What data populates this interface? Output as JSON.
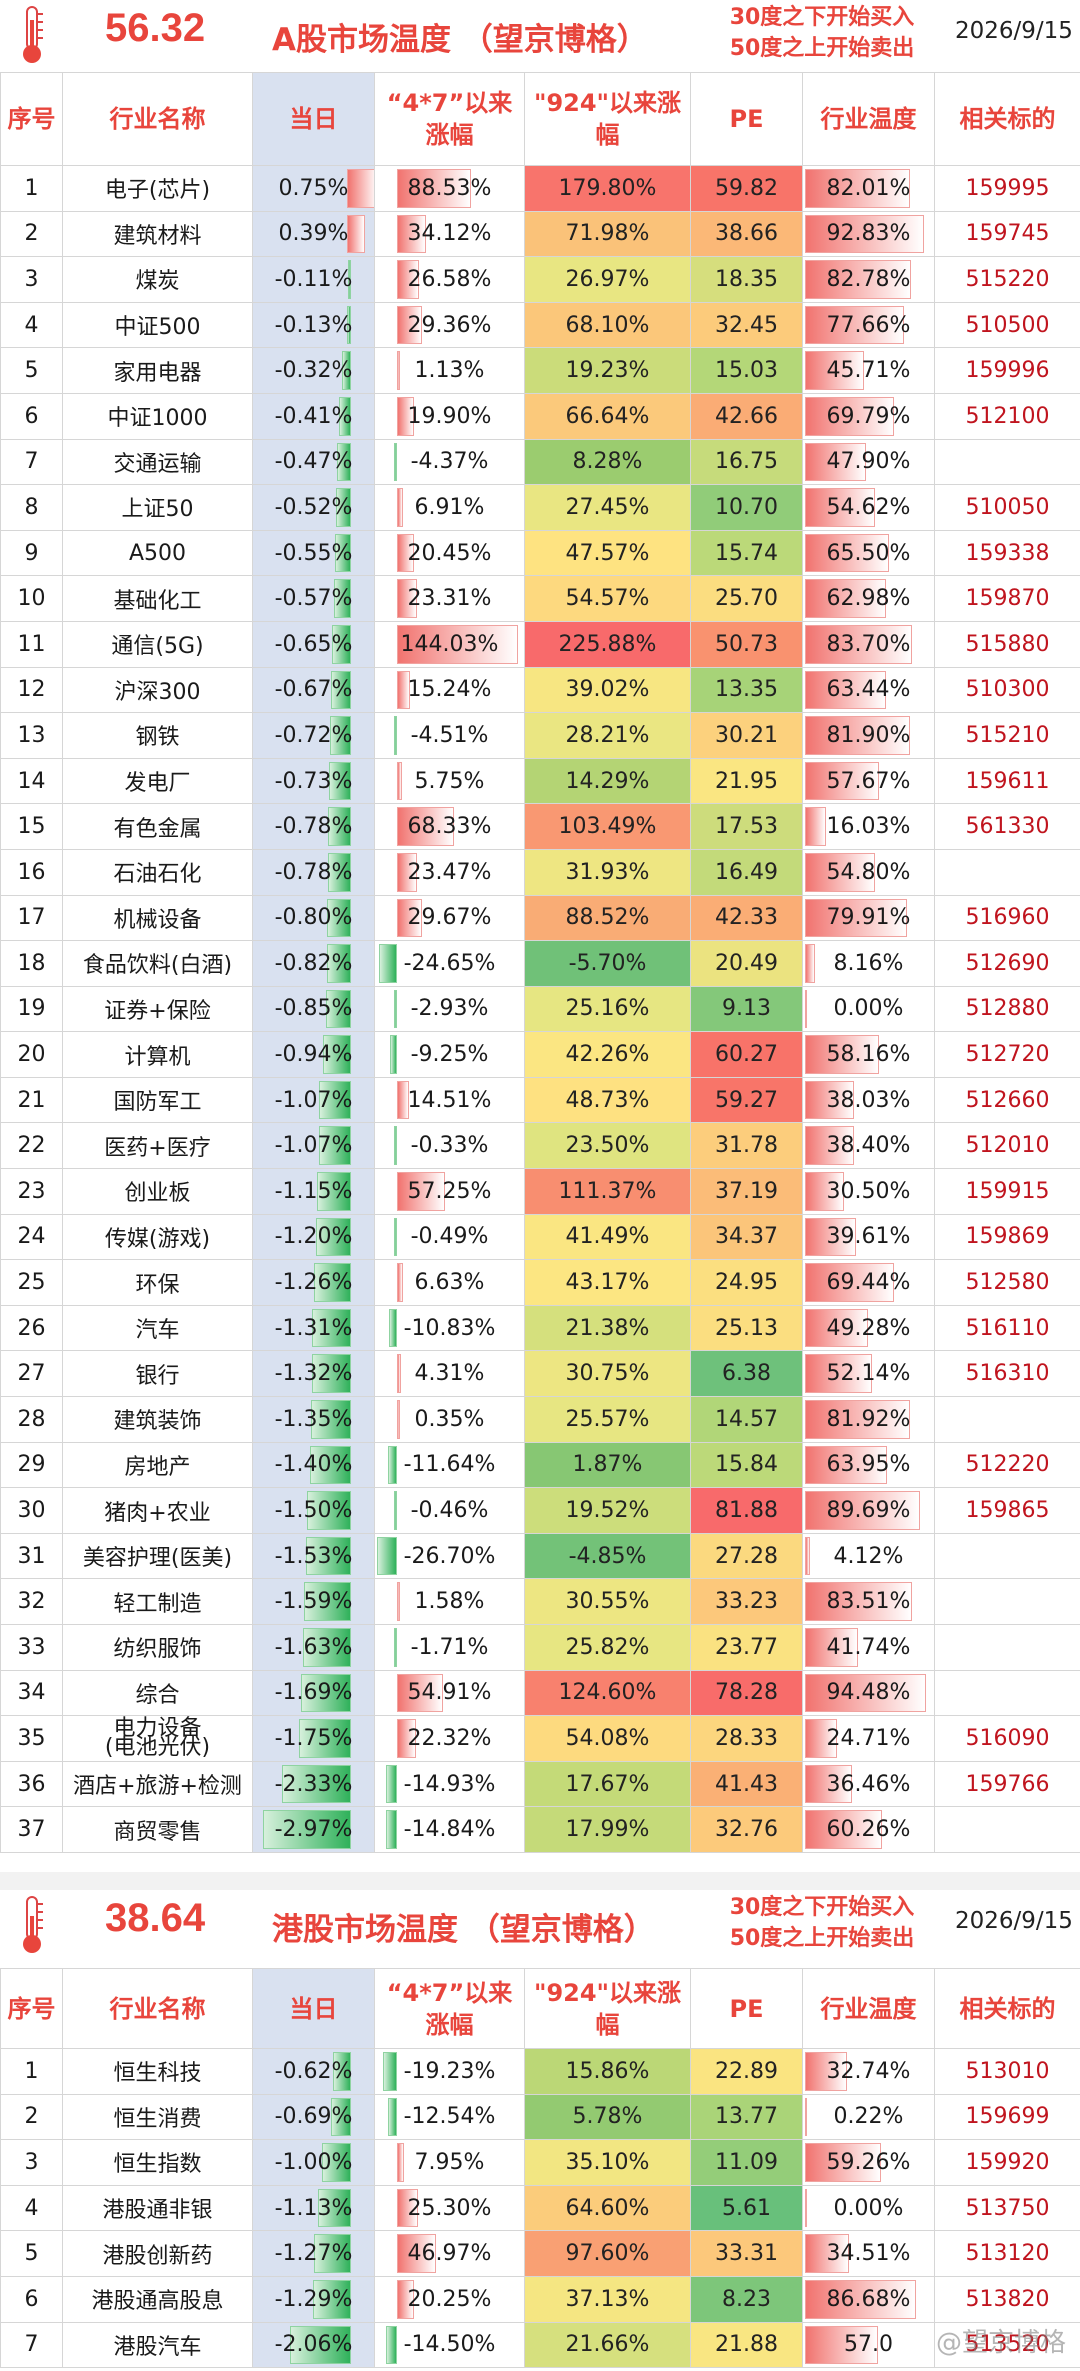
{
  "a_share": {
    "temperature": "56.32",
    "title": "A股市场温度 （望京博格）",
    "rule_line1": "30度之下开始买入",
    "rule_line2": "50度之上开始卖出",
    "date": "2026/9/15",
    "headers": {
      "idx": "序号",
      "name": "行业名称",
      "day": "当日",
      "since47": "“4*7”以来涨幅",
      "since924": "\"924\"以来涨幅",
      "pe": "PE",
      "temp": "行业温度",
      "code": "相关标的"
    },
    "rows": [
      {
        "idx": "1",
        "name": "电子(芯片)",
        "day": "0.75%",
        "d": 0.75,
        "s47": "88.53%",
        "v47": 88.53,
        "s924": "179.80%",
        "v924": 179.8,
        "pe": "59.82",
        "pev": 59.82,
        "temp": "82.01%",
        "t": 82.01,
        "code": "159995"
      },
      {
        "idx": "2",
        "name": "建筑材料",
        "day": "0.39%",
        "d": 0.39,
        "s47": "34.12%",
        "v47": 34.12,
        "s924": "71.98%",
        "v924": 71.98,
        "pe": "38.66",
        "pev": 38.66,
        "temp": "92.83%",
        "t": 92.83,
        "code": "159745"
      },
      {
        "idx": "3",
        "name": "煤炭",
        "day": "-0.11%",
        "d": -0.11,
        "s47": "26.58%",
        "v47": 26.58,
        "s924": "26.97%",
        "v924": 26.97,
        "pe": "18.35",
        "pev": 18.35,
        "temp": "82.78%",
        "t": 82.78,
        "code": "515220"
      },
      {
        "idx": "4",
        "name": "中证500",
        "day": "-0.13%",
        "d": -0.13,
        "s47": "29.36%",
        "v47": 29.36,
        "s924": "68.10%",
        "v924": 68.1,
        "pe": "32.45",
        "pev": 32.45,
        "temp": "77.66%",
        "t": 77.66,
        "code": "510500"
      },
      {
        "idx": "5",
        "name": "家用电器",
        "day": "-0.32%",
        "d": -0.32,
        "s47": "1.13%",
        "v47": 1.13,
        "s924": "19.23%",
        "v924": 19.23,
        "pe": "15.03",
        "pev": 15.03,
        "temp": "45.71%",
        "t": 45.71,
        "code": "159996"
      },
      {
        "idx": "6",
        "name": "中证1000",
        "day": "-0.41%",
        "d": -0.41,
        "s47": "19.90%",
        "v47": 19.9,
        "s924": "66.64%",
        "v924": 66.64,
        "pe": "42.66",
        "pev": 42.66,
        "temp": "69.79%",
        "t": 69.79,
        "code": "512100"
      },
      {
        "idx": "7",
        "name": "交通运输",
        "day": "-0.47%",
        "d": -0.47,
        "s47": "-4.37%",
        "v47": -4.37,
        "s924": "8.28%",
        "v924": 8.28,
        "pe": "16.75",
        "pev": 16.75,
        "temp": "47.90%",
        "t": 47.9,
        "code": ""
      },
      {
        "idx": "8",
        "name": "上证50",
        "day": "-0.52%",
        "d": -0.52,
        "s47": "6.91%",
        "v47": 6.91,
        "s924": "27.45%",
        "v924": 27.45,
        "pe": "10.70",
        "pev": 10.7,
        "temp": "54.62%",
        "t": 54.62,
        "code": "510050"
      },
      {
        "idx": "9",
        "name": "A500",
        "day": "-0.55%",
        "d": -0.55,
        "s47": "20.45%",
        "v47": 20.45,
        "s924": "47.57%",
        "v924": 47.57,
        "pe": "15.74",
        "pev": 15.74,
        "temp": "65.50%",
        "t": 65.5,
        "code": "159338"
      },
      {
        "idx": "10",
        "name": "基础化工",
        "day": "-0.57%",
        "d": -0.57,
        "s47": "23.31%",
        "v47": 23.31,
        "s924": "54.57%",
        "v924": 54.57,
        "pe": "25.70",
        "pev": 25.7,
        "temp": "62.98%",
        "t": 62.98,
        "code": "159870"
      },
      {
        "idx": "11",
        "name": "通信(5G)",
        "day": "-0.65%",
        "d": -0.65,
        "s47": "144.03%",
        "v47": 144.03,
        "s924": "225.88%",
        "v924": 225.88,
        "pe": "50.73",
        "pev": 50.73,
        "temp": "83.70%",
        "t": 83.7,
        "code": "515880"
      },
      {
        "idx": "12",
        "name": "沪深300",
        "day": "-0.67%",
        "d": -0.67,
        "s47": "15.24%",
        "v47": 15.24,
        "s924": "39.02%",
        "v924": 39.02,
        "pe": "13.35",
        "pev": 13.35,
        "temp": "63.44%",
        "t": 63.44,
        "code": "510300"
      },
      {
        "idx": "13",
        "name": "钢铁",
        "day": "-0.72%",
        "d": -0.72,
        "s47": "-4.51%",
        "v47": -4.51,
        "s924": "28.21%",
        "v924": 28.21,
        "pe": "30.21",
        "pev": 30.21,
        "temp": "81.90%",
        "t": 81.9,
        "code": "515210"
      },
      {
        "idx": "14",
        "name": "发电厂",
        "day": "-0.73%",
        "d": -0.73,
        "s47": "5.75%",
        "v47": 5.75,
        "s924": "14.29%",
        "v924": 14.29,
        "pe": "21.95",
        "pev": 21.95,
        "temp": "57.67%",
        "t": 57.67,
        "code": "159611"
      },
      {
        "idx": "15",
        "name": "有色金属",
        "day": "-0.78%",
        "d": -0.78,
        "s47": "68.33%",
        "v47": 68.33,
        "s924": "103.49%",
        "v924": 103.49,
        "pe": "17.53",
        "pev": 17.53,
        "temp": "16.03%",
        "t": 16.03,
        "code": "561330"
      },
      {
        "idx": "16",
        "name": "石油石化",
        "day": "-0.78%",
        "d": -0.78,
        "s47": "23.47%",
        "v47": 23.47,
        "s924": "31.93%",
        "v924": 31.93,
        "pe": "16.49",
        "pev": 16.49,
        "temp": "54.80%",
        "t": 54.8,
        "code": ""
      },
      {
        "idx": "17",
        "name": "机械设备",
        "day": "-0.80%",
        "d": -0.8,
        "s47": "29.67%",
        "v47": 29.67,
        "s924": "88.52%",
        "v924": 88.52,
        "pe": "42.33",
        "pev": 42.33,
        "temp": "79.91%",
        "t": 79.91,
        "code": "516960"
      },
      {
        "idx": "18",
        "name": "食品饮料(白酒)",
        "day": "-0.82%",
        "d": -0.82,
        "s47": "-24.65%",
        "v47": -24.65,
        "s924": "-5.70%",
        "v924": -5.7,
        "pe": "20.49",
        "pev": 20.49,
        "temp": "8.16%",
        "t": 8.16,
        "code": "512690"
      },
      {
        "idx": "19",
        "name": "证券+保险",
        "day": "-0.85%",
        "d": -0.85,
        "s47": "-2.93%",
        "v47": -2.93,
        "s924": "25.16%",
        "v924": 25.16,
        "pe": "9.13",
        "pev": 9.13,
        "temp": "0.00%",
        "t": 0.0,
        "code": "512880"
      },
      {
        "idx": "20",
        "name": "计算机",
        "day": "-0.94%",
        "d": -0.94,
        "s47": "-9.25%",
        "v47": -9.25,
        "s924": "42.26%",
        "v924": 42.26,
        "pe": "60.27",
        "pev": 60.27,
        "temp": "58.16%",
        "t": 58.16,
        "code": "512720"
      },
      {
        "idx": "21",
        "name": "国防军工",
        "day": "-1.07%",
        "d": -1.07,
        "s47": "14.51%",
        "v47": 14.51,
        "s924": "48.73%",
        "v924": 48.73,
        "pe": "59.27",
        "pev": 59.27,
        "temp": "38.03%",
        "t": 38.03,
        "code": "512660"
      },
      {
        "idx": "22",
        "name": "医药+医疗",
        "day": "-1.07%",
        "d": -1.07,
        "s47": "-0.33%",
        "v47": -0.33,
        "s924": "23.50%",
        "v924": 23.5,
        "pe": "31.78",
        "pev": 31.78,
        "temp": "38.40%",
        "t": 38.4,
        "code": "512010"
      },
      {
        "idx": "23",
        "name": "创业板",
        "day": "-1.15%",
        "d": -1.15,
        "s47": "57.25%",
        "v47": 57.25,
        "s924": "111.37%",
        "v924": 111.37,
        "pe": "37.19",
        "pev": 37.19,
        "temp": "30.50%",
        "t": 30.5,
        "code": "159915"
      },
      {
        "idx": "24",
        "name": "传媒(游戏)",
        "day": "-1.20%",
        "d": -1.2,
        "s47": "-0.49%",
        "v47": -0.49,
        "s924": "41.49%",
        "v924": 41.49,
        "pe": "34.37",
        "pev": 34.37,
        "temp": "39.61%",
        "t": 39.61,
        "code": "159869"
      },
      {
        "idx": "25",
        "name": "环保",
        "day": "-1.26%",
        "d": -1.26,
        "s47": "6.63%",
        "v47": 6.63,
        "s924": "43.17%",
        "v924": 43.17,
        "pe": "24.95",
        "pev": 24.95,
        "temp": "69.44%",
        "t": 69.44,
        "code": "512580"
      },
      {
        "idx": "26",
        "name": "汽车",
        "day": "-1.31%",
        "d": -1.31,
        "s47": "-10.83%",
        "v47": -10.83,
        "s924": "21.38%",
        "v924": 21.38,
        "pe": "25.13",
        "pev": 25.13,
        "temp": "49.28%",
        "t": 49.28,
        "code": "516110"
      },
      {
        "idx": "27",
        "name": "银行",
        "day": "-1.32%",
        "d": -1.32,
        "s47": "4.31%",
        "v47": 4.31,
        "s924": "30.75%",
        "v924": 30.75,
        "pe": "6.38",
        "pev": 6.38,
        "temp": "52.14%",
        "t": 52.14,
        "code": "516310"
      },
      {
        "idx": "28",
        "name": "建筑装饰",
        "day": "-1.35%",
        "d": -1.35,
        "s47": "0.35%",
        "v47": 0.35,
        "s924": "25.57%",
        "v924": 25.57,
        "pe": "14.57",
        "pev": 14.57,
        "temp": "81.92%",
        "t": 81.92,
        "code": ""
      },
      {
        "idx": "29",
        "name": "房地产",
        "day": "-1.40%",
        "d": -1.4,
        "s47": "-11.64%",
        "v47": -11.64,
        "s924": "1.87%",
        "v924": 1.87,
        "pe": "15.84",
        "pev": 15.84,
        "temp": "63.95%",
        "t": 63.95,
        "code": "512220"
      },
      {
        "idx": "30",
        "name": "猪肉+农业",
        "day": "-1.50%",
        "d": -1.5,
        "s47": "-0.46%",
        "v47": -0.46,
        "s924": "19.52%",
        "v924": 19.52,
        "pe": "81.88",
        "pev": 81.88,
        "temp": "89.69%",
        "t": 89.69,
        "code": "159865"
      },
      {
        "idx": "31",
        "name": "美容护理(医美)",
        "day": "-1.53%",
        "d": -1.53,
        "s47": "-26.70%",
        "v47": -26.7,
        "s924": "-4.85%",
        "v924": -4.85,
        "pe": "27.28",
        "pev": 27.28,
        "temp": "4.12%",
        "t": 4.12,
        "code": ""
      },
      {
        "idx": "32",
        "name": "轻工制造",
        "day": "-1.59%",
        "d": -1.59,
        "s47": "1.58%",
        "v47": 1.58,
        "s924": "30.55%",
        "v924": 30.55,
        "pe": "33.23",
        "pev": 33.23,
        "temp": "83.51%",
        "t": 83.51,
        "code": ""
      },
      {
        "idx": "33",
        "name": "纺织服饰",
        "day": "-1.63%",
        "d": -1.63,
        "s47": "-1.71%",
        "v47": -1.71,
        "s924": "25.82%",
        "v924": 25.82,
        "pe": "23.77",
        "pev": 23.77,
        "temp": "41.74%",
        "t": 41.74,
        "code": ""
      },
      {
        "idx": "34",
        "name": "综合",
        "day": "-1.69%",
        "d": -1.69,
        "s47": "54.91%",
        "v47": 54.91,
        "s924": "124.60%",
        "v924": 124.6,
        "pe": "78.28",
        "pev": 78.28,
        "temp": "94.48%",
        "t": 94.48,
        "code": ""
      },
      {
        "idx": "35",
        "name": "电力设备\n(电池光伏)",
        "day": "-1.75%",
        "d": -1.75,
        "s47": "22.32%",
        "v47": 22.32,
        "s924": "54.08%",
        "v924": 54.08,
        "pe": "28.33",
        "pev": 28.33,
        "temp": "24.71%",
        "t": 24.71,
        "code": "516090",
        "small": true
      },
      {
        "idx": "36",
        "name": "酒店+旅游+检测",
        "day": "-2.33%",
        "d": -2.33,
        "s47": "-14.93%",
        "v47": -14.93,
        "s924": "17.67%",
        "v924": 17.67,
        "pe": "41.43",
        "pev": 41.43,
        "temp": "36.46%",
        "t": 36.46,
        "code": "159766"
      },
      {
        "idx": "37",
        "name": "商贸零售",
        "day": "-2.97%",
        "d": -2.97,
        "s47": "-14.84%",
        "v47": -14.84,
        "s924": "17.99%",
        "v924": 17.99,
        "pe": "32.76",
        "pev": 32.76,
        "temp": "60.26%",
        "t": 60.26,
        "code": ""
      }
    ]
  },
  "hk_share": {
    "temperature": "38.64",
    "title": "港股市场温度 （望京博格）",
    "rule_line1": "30度之下开始买入",
    "rule_line2": "50度之上开始卖出",
    "date": "2026/9/15",
    "headers": {
      "idx": "序号",
      "name": "行业名称",
      "day": "当日",
      "since47": "“4*7”以来涨幅",
      "since924": "\"924\"以来涨幅",
      "pe": "PE",
      "temp": "行业温度",
      "code": "相关标的"
    },
    "rows": [
      {
        "idx": "1",
        "name": "恒生科技",
        "day": "-0.62%",
        "d": -0.62,
        "s47": "-19.23%",
        "v47": -19.23,
        "s924": "15.86%",
        "v924": 15.86,
        "pe": "22.89",
        "pev": 22.89,
        "temp": "32.74%",
        "t": 32.74,
        "code": "513010"
      },
      {
        "idx": "2",
        "name": "恒生消费",
        "day": "-0.69%",
        "d": -0.69,
        "s47": "-12.54%",
        "v47": -12.54,
        "s924": "5.78%",
        "v924": 5.78,
        "pe": "13.77",
        "pev": 13.77,
        "temp": "0.22%",
        "t": 0.22,
        "code": "159699"
      },
      {
        "idx": "3",
        "name": "恒生指数",
        "day": "-1.00%",
        "d": -1.0,
        "s47": "7.95%",
        "v47": 7.95,
        "s924": "35.10%",
        "v924": 35.1,
        "pe": "11.09",
        "pev": 11.09,
        "temp": "59.26%",
        "t": 59.26,
        "code": "159920"
      },
      {
        "idx": "4",
        "name": "港股通非银",
        "day": "-1.13%",
        "d": -1.13,
        "s47": "25.30%",
        "v47": 25.3,
        "s924": "64.60%",
        "v924": 64.6,
        "pe": "5.61",
        "pev": 5.61,
        "temp": "0.00%",
        "t": 0.0,
        "code": "513750"
      },
      {
        "idx": "5",
        "name": "港股创新药",
        "day": "-1.27%",
        "d": -1.27,
        "s47": "46.97%",
        "v47": 46.97,
        "s924": "97.60%",
        "v924": 97.6,
        "pe": "33.31",
        "pev": 33.31,
        "temp": "34.51%",
        "t": 34.51,
        "code": "513120"
      },
      {
        "idx": "6",
        "name": "港股通高股息",
        "day": "-1.29%",
        "d": -1.29,
        "s47": "20.25%",
        "v47": 20.25,
        "s924": "37.13%",
        "v924": 37.13,
        "pe": "8.23",
        "pev": 8.23,
        "temp": "86.68%",
        "t": 86.68,
        "code": "513820"
      },
      {
        "idx": "7",
        "name": "港股汽车",
        "day": "-2.06%",
        "d": -2.06,
        "s47": "-14.50%",
        "v47": -14.5,
        "s924": "21.66%",
        "v924": 21.66,
        "pe": "21.88",
        "pev": 21.88,
        "temp": "57.0",
        "t": 57.0,
        "code": "513520"
      }
    ]
  },
  "watermark": "@望京博格",
  "colors": {
    "accent_red": "#e8453c",
    "code_red": "#c0141e",
    "day_col_bg": "#d9e1f0"
  }
}
